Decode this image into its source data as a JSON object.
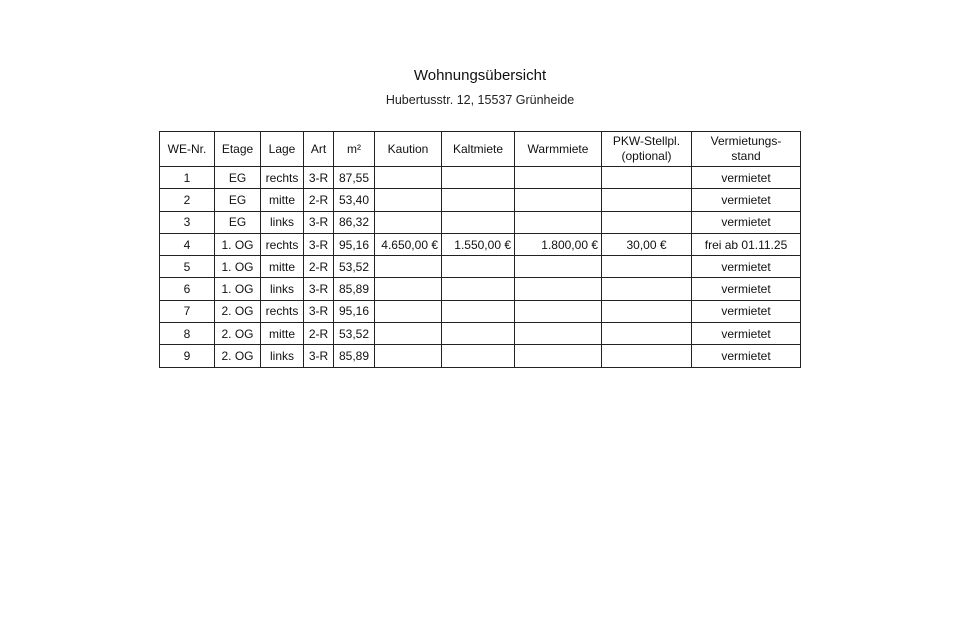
{
  "title": "Wohnungsübersicht",
  "subtitle": "Hubertusstr. 12, 15537 Grünheide",
  "table": {
    "headers": [
      "WE-Nr.",
      "Etage",
      "Lage",
      "Art",
      "m²",
      "Kaution",
      "Kaltmiete",
      "Warmmiete",
      "PKW-Stellpl.\n(optional)",
      "Vermietungs-\nstand"
    ],
    "rows": [
      [
        "1",
        "EG",
        "rechts",
        "3-R",
        "87,55",
        "",
        "",
        "",
        "",
        "vermietet"
      ],
      [
        "2",
        "EG",
        "mitte",
        "2-R",
        "53,40",
        "",
        "",
        "",
        "",
        "vermietet"
      ],
      [
        "3",
        "EG",
        "links",
        "3-R",
        "86,32",
        "",
        "",
        "",
        "",
        "vermietet"
      ],
      [
        "4",
        "1. OG",
        "rechts",
        "3-R",
        "95,16",
        "4.650,00 €",
        "1.550,00 €",
        "1.800,00 €",
        "30,00 €",
        "frei ab 01.11.25"
      ],
      [
        "5",
        "1. OG",
        "mitte",
        "2-R",
        "53,52",
        "",
        "",
        "",
        "",
        "vermietet"
      ],
      [
        "6",
        "1. OG",
        "links",
        "3-R",
        "85,89",
        "",
        "",
        "",
        "",
        "vermietet"
      ],
      [
        "7",
        "2. OG",
        "rechts",
        "3-R",
        "95,16",
        "",
        "",
        "",
        "",
        "vermietet"
      ],
      [
        "8",
        "2. OG",
        "mitte",
        "2-R",
        "53,52",
        "",
        "",
        "",
        "",
        "vermietet"
      ],
      [
        "9",
        "2. OG",
        "links",
        "3-R",
        "85,89",
        "",
        "",
        "",
        "",
        "vermietet"
      ]
    ]
  }
}
